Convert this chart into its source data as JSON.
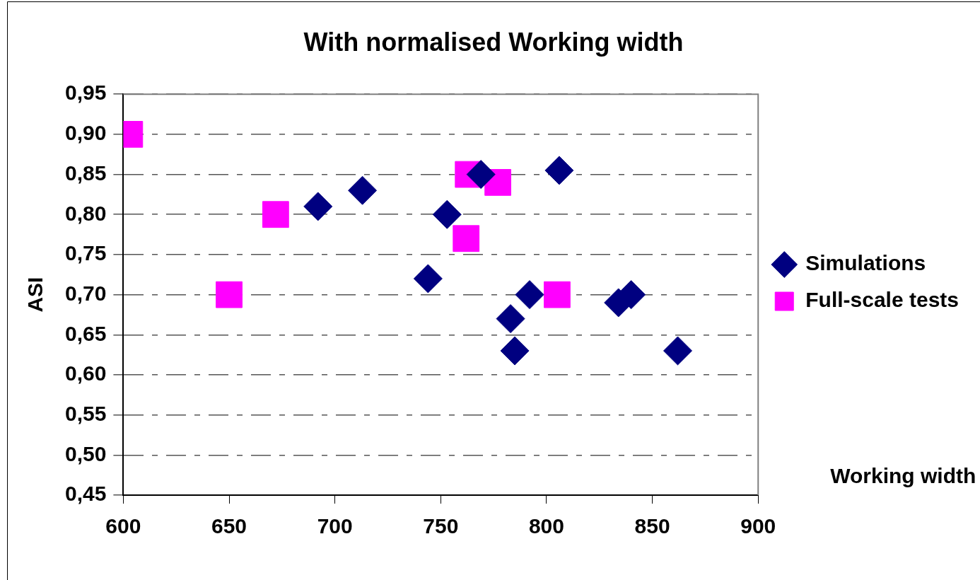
{
  "chart_data": {
    "type": "scatter",
    "title": "With normalised Working width",
    "xlabel": "Working width",
    "ylabel": "ASI",
    "xlim": [
      600,
      900
    ],
    "xticks": [
      600,
      650,
      700,
      750,
      800,
      850,
      900
    ],
    "ylim": [
      0.45,
      0.95
    ],
    "yticks": [
      {
        "value": 0.45,
        "label": "0,45"
      },
      {
        "value": 0.5,
        "label": "0,50"
      },
      {
        "value": 0.55,
        "label": "0,55"
      },
      {
        "value": 0.6,
        "label": "0,60"
      },
      {
        "value": 0.65,
        "label": "0,65"
      },
      {
        "value": 0.7,
        "label": "0,70"
      },
      {
        "value": 0.75,
        "label": "0,75"
      },
      {
        "value": 0.8,
        "label": "0,80"
      },
      {
        "value": 0.85,
        "label": "0,85"
      },
      {
        "value": 0.9,
        "label": "0,90"
      },
      {
        "value": 0.95,
        "label": "0,95"
      }
    ],
    "grid": "y",
    "legend": "right",
    "series": [
      {
        "name": "Simulations",
        "color": "#000080",
        "marker": "diamond",
        "x": [
          692,
          713,
          744,
          753,
          769,
          806,
          792,
          783,
          785,
          834,
          840,
          862
        ],
        "values": [
          0.81,
          0.83,
          0.72,
          0.8,
          0.85,
          0.855,
          0.7,
          0.67,
          0.63,
          0.69,
          0.7,
          0.63
        ]
      },
      {
        "name": "Full-scale tests",
        "color": "#ff00ff",
        "marker": "square",
        "x": [
          603,
          672,
          650,
          763,
          777,
          762,
          805
        ],
        "values": [
          0.9,
          0.8,
          0.7,
          0.85,
          0.84,
          0.77,
          0.7
        ]
      }
    ]
  }
}
